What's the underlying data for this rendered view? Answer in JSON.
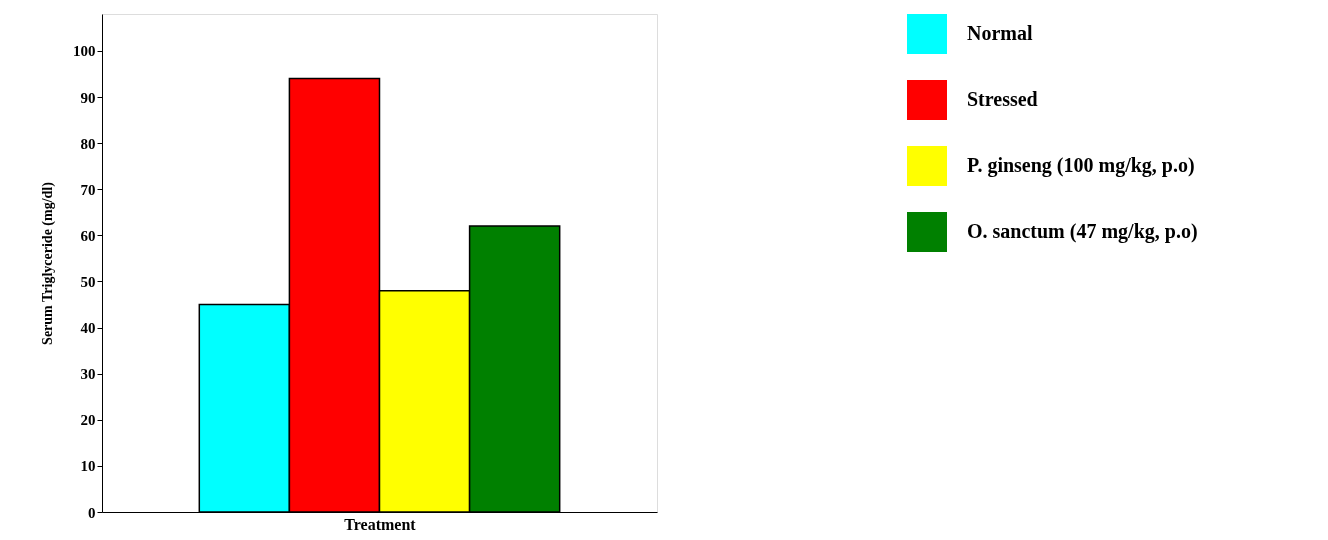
{
  "chart_data": {
    "type": "bar",
    "xlabel": "Treatment",
    "ylabel": "Serum Triglyceride (mg/dl)",
    "categories": [
      null
    ],
    "series": [
      {
        "name": "Normal",
        "color": "#00ffff",
        "values": [
          45
        ]
      },
      {
        "name": "Stressed",
        "color": "#ff0000",
        "values": [
          94
        ]
      },
      {
        "name": "P. ginseng (100 mg/kg, p.o)",
        "color": "#ffff00",
        "values": [
          48
        ]
      },
      {
        "name": "O. sanctum (47 mg/kg, p.o)",
        "color": "#008000",
        "values": [
          62
        ]
      }
    ],
    "ylim": [
      0,
      108
    ],
    "yticks": [
      0,
      10,
      20,
      30,
      40,
      50,
      60,
      70,
      80,
      90,
      100
    ],
    "grid": false,
    "legend": "right"
  }
}
